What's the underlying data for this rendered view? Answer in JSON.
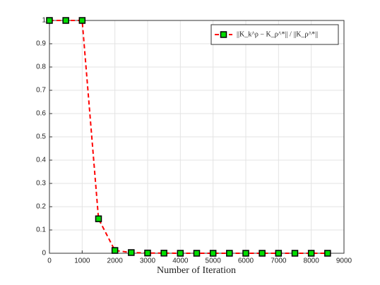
{
  "chart_data": {
    "type": "line",
    "xlabel": "Number of Iteration",
    "x": [
      0,
      500,
      1000,
      1500,
      2000,
      2500,
      3000,
      3500,
      4000,
      4500,
      5000,
      5500,
      6000,
      6500,
      7000,
      7500,
      8000,
      8500
    ],
    "series": [
      {
        "name": "||K_k^ρ − K_ρ^*|| / ||K_ρ^*||",
        "color": "#ff0000",
        "marker_color": "#00dd00",
        "values": [
          1,
          1,
          1,
          0.148,
          0.012,
          0.003,
          0.001,
          0.0005,
          0,
          0,
          0,
          0,
          0,
          0,
          0,
          0,
          0,
          0
        ]
      }
    ],
    "xlim": [
      0,
      9000
    ],
    "xticks": [
      0,
      1000,
      2000,
      3000,
      4000,
      5000,
      6000,
      7000,
      8000,
      9000
    ],
    "ylim": [
      0,
      1
    ],
    "yticks": [
      0,
      0.1,
      0.2,
      0.3,
      0.4,
      0.5,
      0.6,
      0.7,
      0.8,
      0.9,
      1
    ],
    "grid": true,
    "legend": "upper right"
  }
}
